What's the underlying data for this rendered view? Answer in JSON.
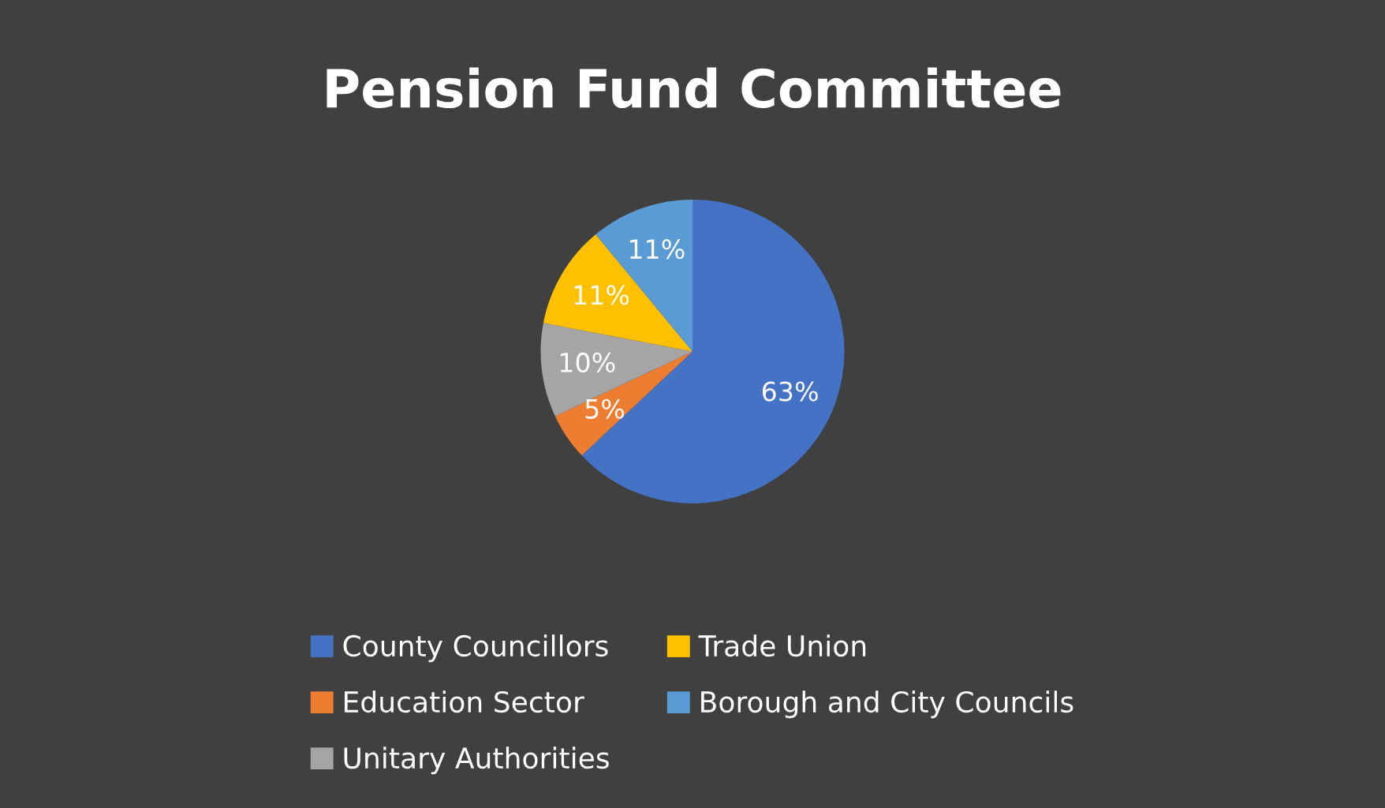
{
  "chart_data": {
    "type": "pie",
    "title": "Pension Fund Committee",
    "categories": [
      "County Councillors",
      "Education Sector",
      "Unitary Authorities",
      "Trade Union",
      "Borough and City Councils"
    ],
    "values": [
      63,
      5,
      10,
      11,
      11
    ],
    "colors": [
      "#4472c4",
      "#ed7d31",
      "#a5a5a5",
      "#ffc000",
      "#5b9bd5"
    ],
    "value_labels": [
      "63%",
      "5%",
      "10%",
      "11%",
      "11%"
    ],
    "legend": "bottom"
  }
}
